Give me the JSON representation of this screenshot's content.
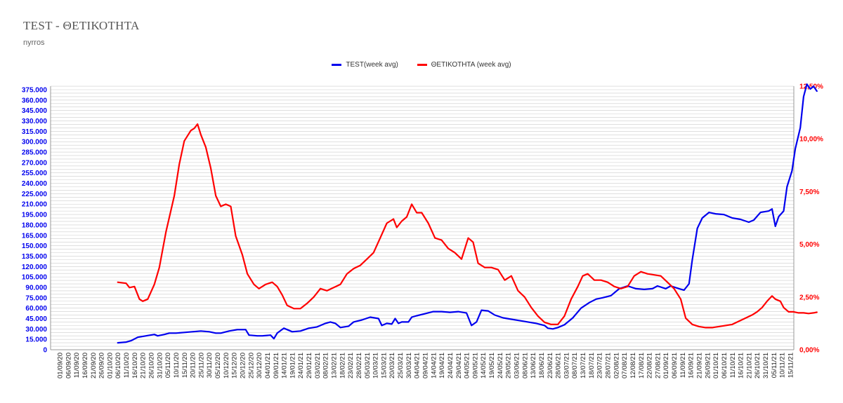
{
  "title": "TEST - ΘΕΤΙΚΟΤΗΤΑ",
  "subtitle": "nyrros",
  "colors": {
    "test": "#0000ee",
    "positivity": "#ff0000",
    "grid": "#cccccc"
  },
  "chart_data": {
    "type": "line",
    "title": "TEST - ΘΕΤΙΚΟΤΗΤΑ",
    "subtitle": "nyrros",
    "legend_position": "top-center",
    "grid": true,
    "x_labels": [
      "01/09/20",
      "06/09/20",
      "11/09/20",
      "16/09/20",
      "21/09/20",
      "26/09/20",
      "01/10/20",
      "06/10/20",
      "11/10/20",
      "16/10/20",
      "21/10/20",
      "26/10/20",
      "31/10/20",
      "05/11/20",
      "10/11/20",
      "15/11/20",
      "20/11/20",
      "25/11/20",
      "30/11/20",
      "05/12/20",
      "10/12/20",
      "15/12/20",
      "20/12/20",
      "25/12/20",
      "30/12/20",
      "04/01/21",
      "09/01/21",
      "14/01/21",
      "19/01/21",
      "24/01/21",
      "29/01/21",
      "03/02/21",
      "08/02/21",
      "13/02/21",
      "18/02/21",
      "23/02/21",
      "28/02/21",
      "05/03/21",
      "10/03/21",
      "15/03/21",
      "20/03/21",
      "25/03/21",
      "30/03/21",
      "04/04/21",
      "09/04/21",
      "14/04/21",
      "19/04/21",
      "24/04/21",
      "29/04/21",
      "04/05/21",
      "09/05/21",
      "14/05/21",
      "19/05/21",
      "24/05/21",
      "29/05/21",
      "03/06/21",
      "08/06/21",
      "13/06/21",
      "18/06/21",
      "23/06/21",
      "28/06/21",
      "03/07/21",
      "08/07/21",
      "13/07/21",
      "18/07/21",
      "23/07/21",
      "28/07/21",
      "02/08/21",
      "07/08/21",
      "12/08/21",
      "17/08/21",
      "22/08/21",
      "27/08/21",
      "01/09/21",
      "06/09/21",
      "11/09/21",
      "16/09/21",
      "21/09/21",
      "26/09/21",
      "01/10/21",
      "06/10/21",
      "11/10/21",
      "16/10/21",
      "21/10/21",
      "26/10/21",
      "31/10/21",
      "05/11/21",
      "10/11/21",
      "15/11/21"
    ],
    "y_left": {
      "min": 0,
      "max": 375000,
      "step": 15000,
      "tick_labels": [
        "0",
        "15.000",
        "30.000",
        "45.000",
        "60.000",
        "75.000",
        "90.000",
        "105.000",
        "120.000",
        "135.000",
        "150.000",
        "165.000",
        "180.000",
        "195.000",
        "210.000",
        "225.000",
        "240.000",
        "255.000",
        "270.000",
        "285.000",
        "300.000",
        "315.000",
        "330.000",
        "345.000",
        "360.000",
        "375.000"
      ]
    },
    "y_right": {
      "min": 0,
      "max": 12.5,
      "step": 2.5,
      "tick_labels": [
        "0,00%",
        "2,50%",
        "5,00%",
        "7,50%",
        "10,00%",
        "12,50%"
      ]
    },
    "series": [
      {
        "name": "TEST(week avg)",
        "axis": "left",
        "points": [
          [
            "06/10/20",
            10000
          ],
          [
            "11/10/20",
            11000
          ],
          [
            "14/10/20",
            13000
          ],
          [
            "18/10/20",
            18000
          ],
          [
            "23/10/20",
            20000
          ],
          [
            "28/10/20",
            22000
          ],
          [
            "30/10/20",
            20000
          ],
          [
            "03/11/20",
            22000
          ],
          [
            "06/11/20",
            24000
          ],
          [
            "10/11/20",
            24000
          ],
          [
            "15/11/20",
            25000
          ],
          [
            "20/11/20",
            26000
          ],
          [
            "25/11/20",
            27000
          ],
          [
            "30/11/20",
            26000
          ],
          [
            "04/12/20",
            24000
          ],
          [
            "07/12/20",
            24000
          ],
          [
            "12/12/20",
            27000
          ],
          [
            "17/12/20",
            29000
          ],
          [
            "22/12/20",
            29000
          ],
          [
            "24/12/20",
            21000
          ],
          [
            "29/12/20",
            20000
          ],
          [
            "01/01/21",
            20000
          ],
          [
            "06/01/21",
            21000
          ],
          [
            "08/01/21",
            16000
          ],
          [
            "10/01/21",
            24000
          ],
          [
            "14/01/21",
            31000
          ],
          [
            "19/01/21",
            26000
          ],
          [
            "24/01/21",
            27000
          ],
          [
            "29/01/21",
            31000
          ],
          [
            "03/02/21",
            33000
          ],
          [
            "08/02/21",
            38000
          ],
          [
            "11/02/21",
            40000
          ],
          [
            "14/02/21",
            38000
          ],
          [
            "17/02/21",
            32000
          ],
          [
            "22/02/21",
            34000
          ],
          [
            "25/02/21",
            40000
          ],
          [
            "02/03/21",
            43000
          ],
          [
            "07/03/21",
            47000
          ],
          [
            "12/03/21",
            45000
          ],
          [
            "14/03/21",
            35000
          ],
          [
            "17/03/21",
            38000
          ],
          [
            "20/03/21",
            37000
          ],
          [
            "22/03/21",
            45000
          ],
          [
            "24/03/21",
            38000
          ],
          [
            "26/03/21",
            40000
          ],
          [
            "30/03/21",
            40000
          ],
          [
            "01/04/21",
            47000
          ],
          [
            "04/04/21",
            49000
          ],
          [
            "09/04/21",
            52000
          ],
          [
            "14/04/21",
            55000
          ],
          [
            "19/04/21",
            55000
          ],
          [
            "24/04/21",
            54000
          ],
          [
            "29/04/21",
            55000
          ],
          [
            "04/05/21",
            53000
          ],
          [
            "07/05/21",
            35000
          ],
          [
            "10/05/21",
            40000
          ],
          [
            "13/05/21",
            57000
          ],
          [
            "17/05/21",
            56000
          ],
          [
            "21/05/21",
            50000
          ],
          [
            "26/05/21",
            46000
          ],
          [
            "31/05/21",
            44000
          ],
          [
            "05/06/21",
            42000
          ],
          [
            "10/06/21",
            40000
          ],
          [
            "15/06/21",
            38000
          ],
          [
            "20/06/21",
            35000
          ],
          [
            "22/06/21",
            31000
          ],
          [
            "25/06/21",
            30000
          ],
          [
            "28/06/21",
            32000
          ],
          [
            "02/07/21",
            36000
          ],
          [
            "07/07/21",
            46000
          ],
          [
            "12/07/21",
            60000
          ],
          [
            "17/07/21",
            68000
          ],
          [
            "21/07/21",
            73000
          ],
          [
            "25/07/21",
            75000
          ],
          [
            "30/07/21",
            78000
          ],
          [
            "04/08/21",
            88000
          ],
          [
            "09/08/21",
            92000
          ],
          [
            "14/08/21",
            88000
          ],
          [
            "19/08/21",
            87000
          ],
          [
            "24/08/21",
            88000
          ],
          [
            "27/08/21",
            92000
          ],
          [
            "01/09/21",
            88000
          ],
          [
            "04/09/21",
            92000
          ],
          [
            "09/09/21",
            88000
          ],
          [
            "12/09/21",
            86000
          ],
          [
            "15/09/21",
            95000
          ],
          [
            "17/09/21",
            130000
          ],
          [
            "20/09/21",
            175000
          ],
          [
            "23/09/21",
            190000
          ],
          [
            "27/09/21",
            198000
          ],
          [
            "01/10/21",
            196000
          ],
          [
            "06/10/21",
            195000
          ],
          [
            "11/10/21",
            190000
          ],
          [
            "16/10/21",
            188000
          ],
          [
            "21/10/21",
            184000
          ],
          [
            "24/10/21",
            187000
          ],
          [
            "28/10/21",
            198000
          ],
          [
            "02/11/21",
            200000
          ],
          [
            "04/11/21",
            203000
          ],
          [
            "06/11/21",
            178000
          ],
          [
            "08/11/21",
            192000
          ],
          [
            "11/11/21",
            200000
          ],
          [
            "13/11/21",
            235000
          ],
          [
            "16/11/21",
            258000
          ],
          [
            "18/11/21",
            290000
          ],
          [
            "21/11/21",
            320000
          ],
          [
            "23/11/21",
            365000
          ],
          [
            "25/11/21",
            383000
          ],
          [
            "27/11/21",
            376000
          ],
          [
            "29/11/21",
            380000
          ],
          [
            "01/12/21",
            373000
          ]
        ]
      },
      {
        "name": "ΘΕΤΙΚΟΤΗΤΑ (week avg)",
        "axis": "right",
        "points": [
          [
            "06/10/20",
            3.2
          ],
          [
            "11/10/20",
            3.15
          ],
          [
            "13/10/20",
            2.95
          ],
          [
            "16/10/20",
            3.0
          ],
          [
            "19/10/20",
            2.4
          ],
          [
            "21/10/20",
            2.3
          ],
          [
            "24/10/20",
            2.4
          ],
          [
            "28/10/20",
            3.1
          ],
          [
            "31/10/20",
            3.9
          ],
          [
            "04/11/20",
            5.6
          ],
          [
            "09/11/20",
            7.3
          ],
          [
            "12/11/20",
            8.8
          ],
          [
            "15/11/20",
            9.9
          ],
          [
            "19/11/20",
            10.4
          ],
          [
            "21/11/20",
            10.5
          ],
          [
            "23/11/20",
            10.7
          ],
          [
            "25/11/20",
            10.2
          ],
          [
            "28/11/20",
            9.6
          ],
          [
            "01/12/20",
            8.6
          ],
          [
            "04/12/20",
            7.3
          ],
          [
            "07/12/20",
            6.8
          ],
          [
            "10/12/20",
            6.9
          ],
          [
            "13/12/20",
            6.8
          ],
          [
            "16/12/20",
            5.4
          ],
          [
            "20/12/20",
            4.5
          ],
          [
            "23/12/20",
            3.6
          ],
          [
            "27/12/20",
            3.1
          ],
          [
            "30/12/20",
            2.9
          ],
          [
            "03/01/21",
            3.1
          ],
          [
            "07/01/21",
            3.2
          ],
          [
            "10/01/21",
            3.0
          ],
          [
            "13/01/21",
            2.6
          ],
          [
            "16/01/21",
            2.1
          ],
          [
            "20/01/21",
            1.95
          ],
          [
            "24/01/21",
            1.95
          ],
          [
            "28/01/21",
            2.2
          ],
          [
            "01/02/21",
            2.5
          ],
          [
            "05/02/21",
            2.9
          ],
          [
            "09/02/21",
            2.8
          ],
          [
            "13/02/21",
            2.95
          ],
          [
            "17/02/21",
            3.1
          ],
          [
            "21/02/21",
            3.6
          ],
          [
            "25/02/21",
            3.85
          ],
          [
            "01/03/21",
            4.0
          ],
          [
            "05/03/21",
            4.3
          ],
          [
            "09/03/21",
            4.6
          ],
          [
            "13/03/21",
            5.3
          ],
          [
            "17/03/21",
            6.0
          ],
          [
            "21/03/21",
            6.2
          ],
          [
            "23/03/21",
            5.8
          ],
          [
            "26/03/21",
            6.1
          ],
          [
            "29/03/21",
            6.3
          ],
          [
            "01/04/21",
            6.9
          ],
          [
            "04/04/21",
            6.5
          ],
          [
            "07/04/21",
            6.5
          ],
          [
            "11/04/21",
            6.0
          ],
          [
            "15/04/21",
            5.3
          ],
          [
            "19/04/21",
            5.2
          ],
          [
            "23/04/21",
            4.8
          ],
          [
            "27/04/21",
            4.6
          ],
          [
            "01/05/21",
            4.3
          ],
          [
            "05/05/21",
            5.3
          ],
          [
            "08/05/21",
            5.1
          ],
          [
            "11/05/21",
            4.1
          ],
          [
            "15/05/21",
            3.9
          ],
          [
            "19/05/21",
            3.9
          ],
          [
            "23/05/21",
            3.8
          ],
          [
            "27/05/21",
            3.3
          ],
          [
            "31/05/21",
            3.5
          ],
          [
            "04/06/21",
            2.8
          ],
          [
            "08/06/21",
            2.5
          ],
          [
            "12/06/21",
            2.0
          ],
          [
            "16/06/21",
            1.6
          ],
          [
            "20/06/21",
            1.3
          ],
          [
            "24/06/21",
            1.2
          ],
          [
            "28/06/21",
            1.2
          ],
          [
            "02/07/21",
            1.6
          ],
          [
            "06/07/21",
            2.4
          ],
          [
            "10/07/21",
            3.0
          ],
          [
            "13/07/21",
            3.5
          ],
          [
            "16/07/21",
            3.6
          ],
          [
            "20/07/21",
            3.3
          ],
          [
            "24/07/21",
            3.3
          ],
          [
            "28/07/21",
            3.2
          ],
          [
            "01/08/21",
            3.0
          ],
          [
            "05/08/21",
            2.9
          ],
          [
            "09/08/21",
            3.0
          ],
          [
            "13/08/21",
            3.5
          ],
          [
            "17/08/21",
            3.7
          ],
          [
            "21/08/21",
            3.6
          ],
          [
            "25/08/21",
            3.55
          ],
          [
            "29/08/21",
            3.5
          ],
          [
            "02/09/21",
            3.2
          ],
          [
            "06/09/21",
            2.9
          ],
          [
            "10/09/21",
            2.4
          ],
          [
            "13/09/21",
            1.5
          ],
          [
            "17/09/21",
            1.2
          ],
          [
            "21/09/21",
            1.1
          ],
          [
            "25/09/21",
            1.05
          ],
          [
            "29/09/21",
            1.05
          ],
          [
            "03/10/21",
            1.1
          ],
          [
            "07/10/21",
            1.15
          ],
          [
            "11/10/21",
            1.2
          ],
          [
            "15/10/21",
            1.35
          ],
          [
            "19/10/21",
            1.5
          ],
          [
            "23/10/21",
            1.65
          ],
          [
            "26/10/21",
            1.8
          ],
          [
            "29/10/21",
            2.0
          ],
          [
            "01/11/21",
            2.3
          ],
          [
            "04/11/21",
            2.55
          ],
          [
            "06/11/21",
            2.4
          ],
          [
            "09/11/21",
            2.3
          ],
          [
            "11/11/21",
            2.0
          ],
          [
            "14/11/21",
            1.8
          ],
          [
            "17/11/21",
            1.8
          ],
          [
            "20/11/21",
            1.75
          ],
          [
            "23/11/21",
            1.75
          ],
          [
            "26/11/21",
            1.72
          ],
          [
            "29/11/21",
            1.75
          ],
          [
            "01/12/21",
            1.78
          ]
        ]
      }
    ]
  }
}
